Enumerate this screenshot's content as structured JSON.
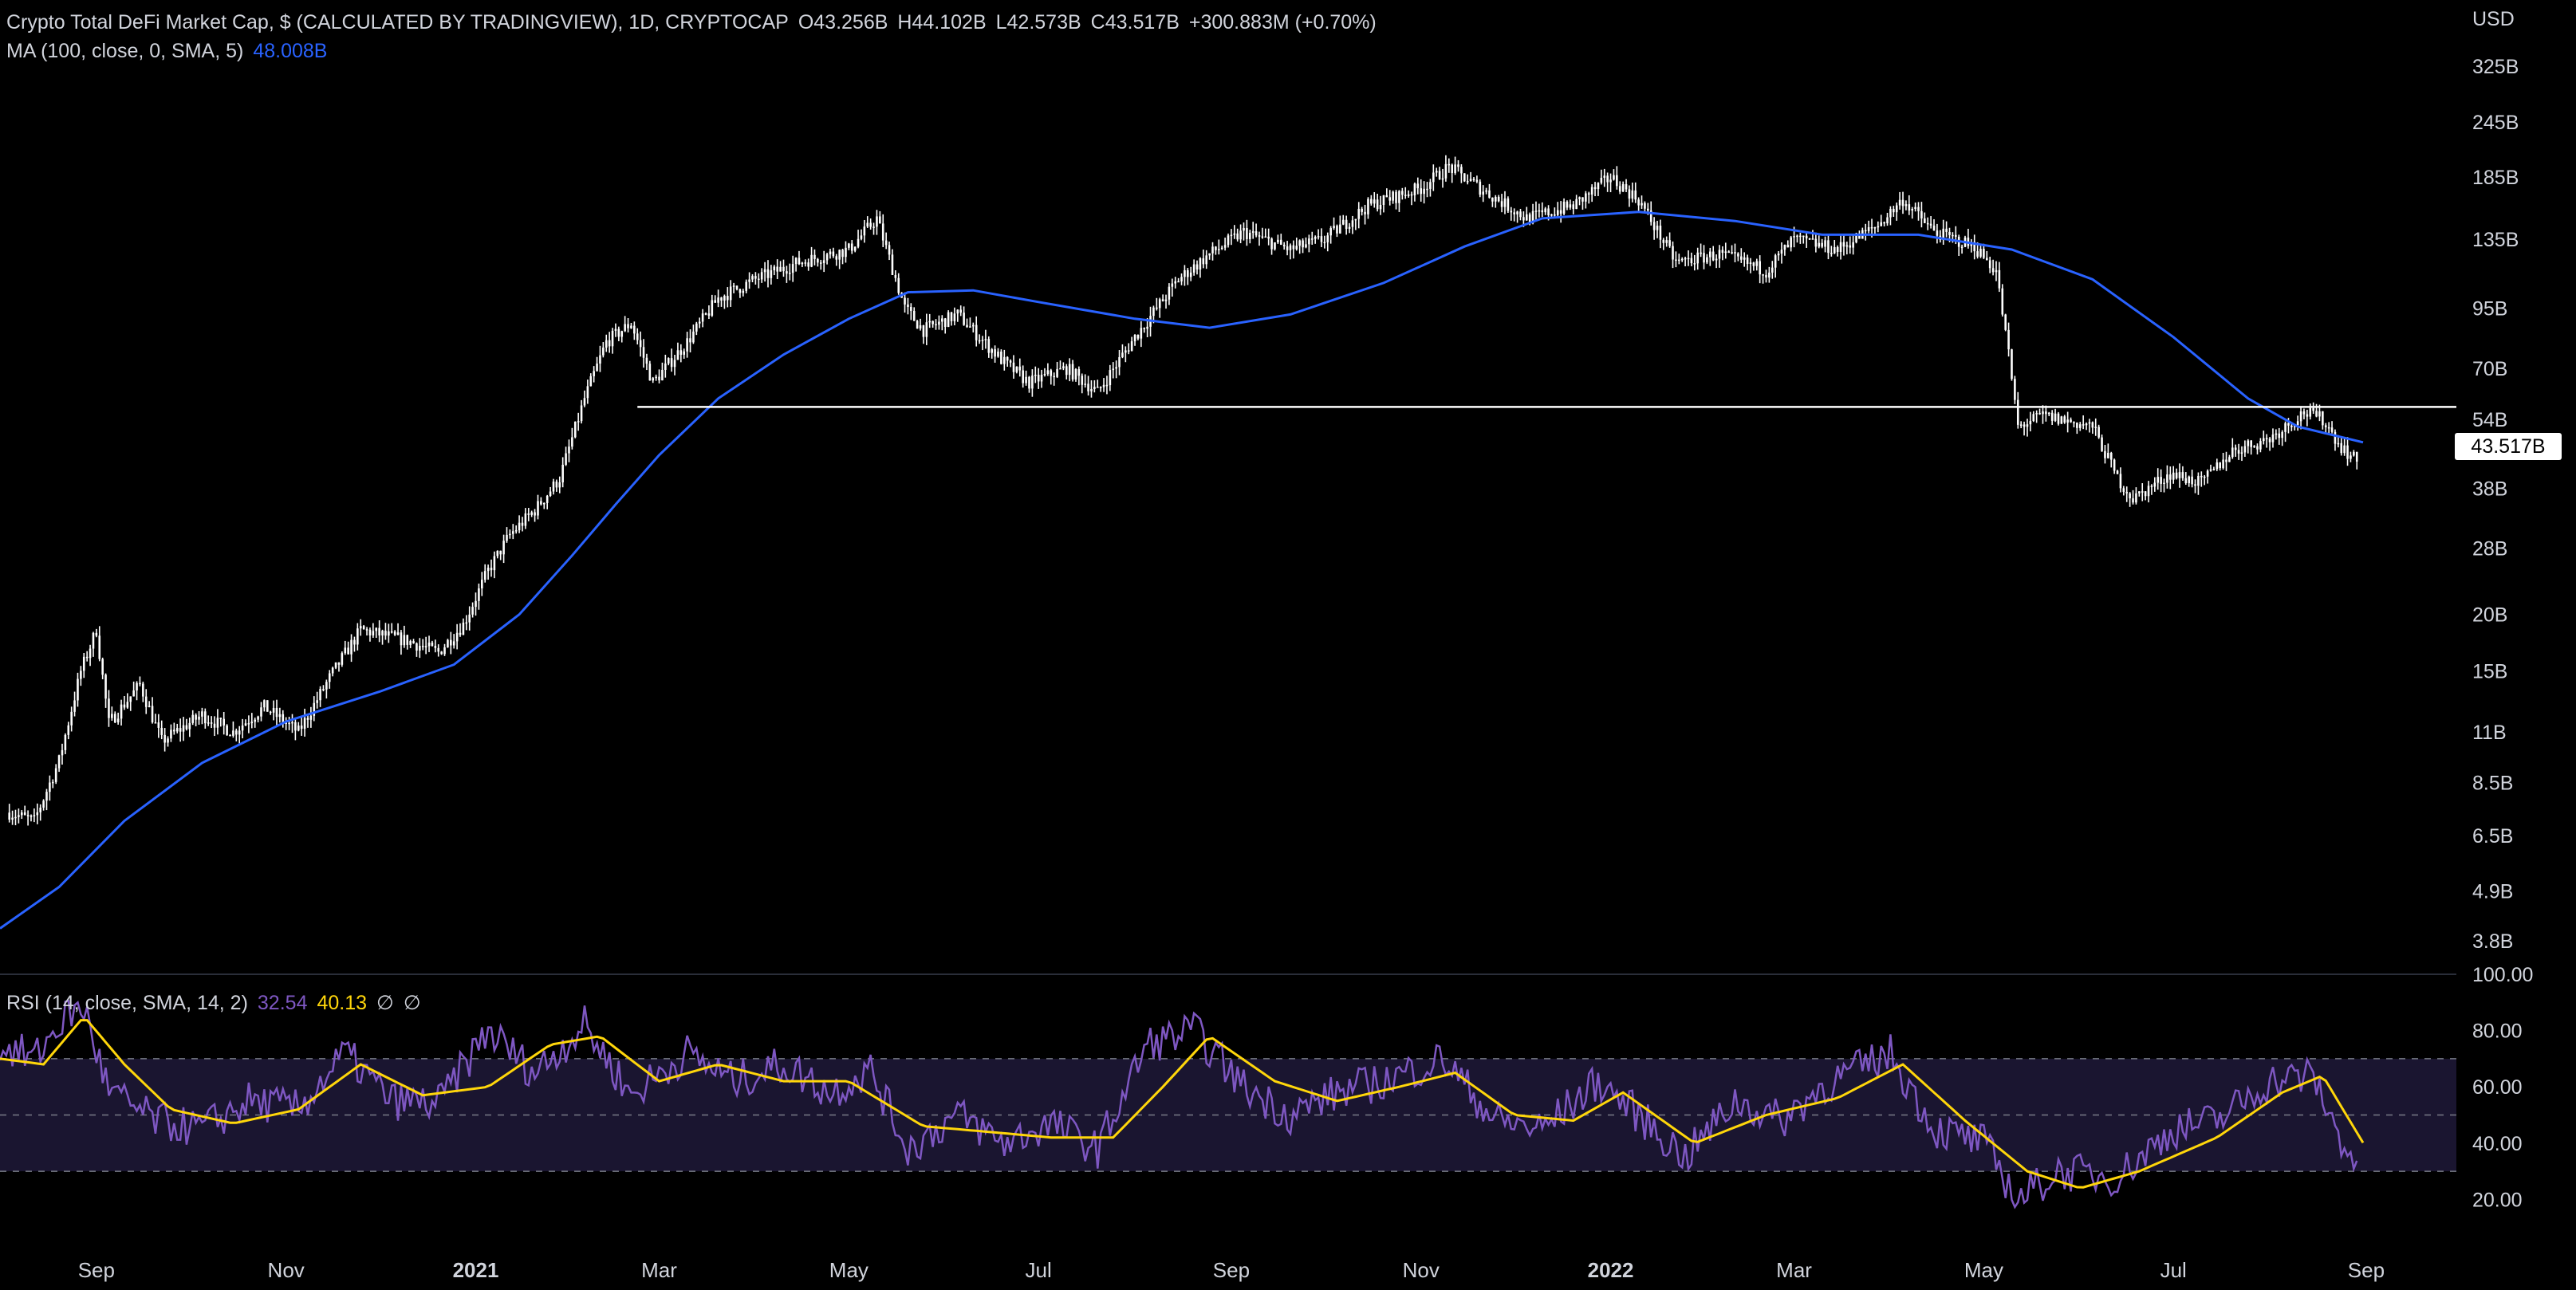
{
  "header": {
    "title": "Crypto Total DeFi Market Cap, $ (CALCULATED BY TRADINGVIEW), 1D, CRYPTOCAP",
    "open": "O43.256B",
    "high": "H44.102B",
    "low": "L42.573B",
    "close": "C43.517B",
    "change": "+300.883M (+0.70%)",
    "ma_label": "MA (100, close, 0, SMA, 5)",
    "ma_value": "48.008B",
    "rsi_label": "RSI (14, close, SMA, 14, 2)",
    "rsi_value": "32.54",
    "rsi_sma_value": "40.13",
    "rsi_extra1": "∅",
    "rsi_extra2": "∅"
  },
  "currency": "USD",
  "last_price_label": "43.517B",
  "colors": {
    "background": "#000000",
    "candles": "#ffffff",
    "ma": "#2962ff",
    "rsi": "#7e57c2",
    "rsi_sma": "#ffd60a",
    "band": "#1a1530",
    "support_line": "#ffffff",
    "axis_text": "#d1d4dc"
  },
  "chart_data": [
    {
      "type": "line",
      "subtype": "candlestick-ohlc",
      "title": "Crypto Total DeFi Market Cap",
      "y_scale": "log",
      "ylim": [
        3.3,
        420
      ],
      "y_unit": "B USD",
      "y_ticks": [
        {
          "v": 3.8,
          "label": "3.8B"
        },
        {
          "v": 4.9,
          "label": "4.9B"
        },
        {
          "v": 6.5,
          "label": "6.5B"
        },
        {
          "v": 8.5,
          "label": "8.5B"
        },
        {
          "v": 11,
          "label": "11B"
        },
        {
          "v": 15,
          "label": "15B"
        },
        {
          "v": 20,
          "label": "20B"
        },
        {
          "v": 28,
          "label": "28B"
        },
        {
          "v": 38,
          "label": "38B"
        },
        {
          "v": 54,
          "label": "54B"
        },
        {
          "v": 70,
          "label": "70B"
        },
        {
          "v": 95,
          "label": "95B"
        },
        {
          "v": 135,
          "label": "135B"
        },
        {
          "v": 185,
          "label": "185B"
        },
        {
          "v": 245,
          "label": "245B"
        },
        {
          "v": 325,
          "label": "325B"
        }
      ],
      "x_range": [
        "2020-08-01",
        "2022-09-30"
      ],
      "x_ticks": [
        {
          "d": "2020-09-01",
          "label": "Sep"
        },
        {
          "d": "2020-11-01",
          "label": "Nov"
        },
        {
          "d": "2021-01-01",
          "label": "2021"
        },
        {
          "d": "2021-03-01",
          "label": "Mar"
        },
        {
          "d": "2021-05-01",
          "label": "May"
        },
        {
          "d": "2021-07-01",
          "label": "Jul"
        },
        {
          "d": "2021-09-01",
          "label": "Sep"
        },
        {
          "d": "2021-11-01",
          "label": "Nov"
        },
        {
          "d": "2022-01-01",
          "label": "2022"
        },
        {
          "d": "2022-03-01",
          "label": "Mar"
        },
        {
          "d": "2022-05-01",
          "label": "May"
        },
        {
          "d": "2022-07-01",
          "label": "Jul"
        },
        {
          "d": "2022-09-01",
          "label": "Sep"
        }
      ],
      "price_path": [
        [
          "2020-08-04",
          7.3
        ],
        [
          "2020-08-12",
          7.0
        ],
        [
          "2020-08-20",
          9.5
        ],
        [
          "2020-08-27",
          15.0
        ],
        [
          "2020-09-01",
          18.5
        ],
        [
          "2020-09-05",
          11.5
        ],
        [
          "2020-09-15",
          14.0
        ],
        [
          "2020-09-22",
          10.5
        ],
        [
          "2020-10-05",
          12.0
        ],
        [
          "2020-10-15",
          11.0
        ],
        [
          "2020-10-25",
          12.5
        ],
        [
          "2020-11-05",
          11.0
        ],
        [
          "2020-11-15",
          14.5
        ],
        [
          "2020-11-25",
          18.5
        ],
        [
          "2020-12-10",
          17.5
        ],
        [
          "2020-12-20",
          16.5
        ],
        [
          "2020-12-28",
          19.0
        ],
        [
          "2021-01-05",
          25.0
        ],
        [
          "2021-01-12",
          30.0
        ],
        [
          "2021-01-20",
          34.0
        ],
        [
          "2021-01-28",
          40.0
        ],
        [
          "2021-02-05",
          60.0
        ],
        [
          "2021-02-12",
          80.0
        ],
        [
          "2021-02-20",
          88.0
        ],
        [
          "2021-02-27",
          65.0
        ],
        [
          "2021-03-10",
          80.0
        ],
        [
          "2021-03-20",
          100.0
        ],
        [
          "2021-04-01",
          110.0
        ],
        [
          "2021-04-15",
          120.0
        ],
        [
          "2021-05-01",
          128.0
        ],
        [
          "2021-05-10",
          150.0
        ],
        [
          "2021-05-19",
          95.0
        ],
        [
          "2021-05-25",
          85.0
        ],
        [
          "2021-06-05",
          92.0
        ],
        [
          "2021-06-20",
          72.0
        ],
        [
          "2021-06-28",
          65.0
        ],
        [
          "2021-07-10",
          70.0
        ],
        [
          "2021-07-20",
          62.0
        ],
        [
          "2021-08-01",
          82.0
        ],
        [
          "2021-08-15",
          110.0
        ],
        [
          "2021-08-25",
          125.0
        ],
        [
          "2021-09-05",
          140.0
        ],
        [
          "2021-09-20",
          128.0
        ],
        [
          "2021-10-01",
          135.0
        ],
        [
          "2021-10-15",
          160.0
        ],
        [
          "2021-11-01",
          175.0
        ],
        [
          "2021-11-10",
          195.0
        ],
        [
          "2021-11-20",
          175.0
        ],
        [
          "2021-12-05",
          150.0
        ],
        [
          "2021-12-20",
          160.0
        ],
        [
          "2022-01-01",
          185.0
        ],
        [
          "2022-01-10",
          165.0
        ],
        [
          "2022-01-22",
          120.0
        ],
        [
          "2022-02-05",
          125.0
        ],
        [
          "2022-02-20",
          115.0
        ],
        [
          "2022-03-01",
          135.0
        ],
        [
          "2022-03-15",
          128.0
        ],
        [
          "2022-03-28",
          145.0
        ],
        [
          "2022-04-05",
          165.0
        ],
        [
          "2022-04-15",
          140.0
        ],
        [
          "2022-04-28",
          130.0
        ],
        [
          "2022-05-05",
          115.0
        ],
        [
          "2022-05-09",
          75.0
        ],
        [
          "2022-05-12",
          52.0
        ],
        [
          "2022-05-20",
          55.0
        ],
        [
          "2022-06-05",
          52.0
        ],
        [
          "2022-06-13",
          40.0
        ],
        [
          "2022-06-18",
          36.0
        ],
        [
          "2022-06-30",
          41.0
        ],
        [
          "2022-07-10",
          39.0
        ],
        [
          "2022-07-20",
          46.0
        ],
        [
          "2022-08-01",
          49.0
        ],
        [
          "2022-08-12",
          56.0
        ],
        [
          "2022-08-18",
          54.0
        ],
        [
          "2022-08-24",
          47.0
        ],
        [
          "2022-08-29",
          43.517
        ]
      ],
      "ma_path": [
        [
          "2020-08-01",
          4.05
        ],
        [
          "2020-08-20",
          5.0
        ],
        [
          "2020-09-10",
          7.0
        ],
        [
          "2020-10-05",
          9.4
        ],
        [
          "2020-11-01",
          11.6
        ],
        [
          "2020-12-01",
          13.5
        ],
        [
          "2020-12-25",
          15.5
        ],
        [
          "2021-01-15",
          20.0
        ],
        [
          "2021-02-01",
          27.0
        ],
        [
          "2021-02-15",
          35.0
        ],
        [
          "2021-03-01",
          45.0
        ],
        [
          "2021-03-20",
          60.0
        ],
        [
          "2021-04-10",
          75.0
        ],
        [
          "2021-05-01",
          90.0
        ],
        [
          "2021-05-20",
          103.0
        ],
        [
          "2021-06-10",
          104.0
        ],
        [
          "2021-07-01",
          98.0
        ],
        [
          "2021-08-01",
          90.0
        ],
        [
          "2021-08-25",
          86.0
        ],
        [
          "2021-09-20",
          92.0
        ],
        [
          "2021-10-20",
          108.0
        ],
        [
          "2021-11-15",
          130.0
        ],
        [
          "2021-12-10",
          150.0
        ],
        [
          "2022-01-10",
          155.0
        ],
        [
          "2022-02-10",
          148.0
        ],
        [
          "2022-03-10",
          138.0
        ],
        [
          "2022-04-10",
          138.0
        ],
        [
          "2022-05-10",
          128.0
        ],
        [
          "2022-06-05",
          110.0
        ],
        [
          "2022-07-01",
          82.0
        ],
        [
          "2022-07-25",
          60.0
        ],
        [
          "2022-08-10",
          52.0
        ],
        [
          "2022-08-31",
          48.008
        ]
      ],
      "support_line": {
        "value": 57.5,
        "from": "2021-02-22",
        "to": "2022-09-30"
      },
      "last_value": 43.517,
      "grid": false,
      "legend": "top-left"
    },
    {
      "type": "line",
      "title": "RSI (14, close, SMA, 14, 2)",
      "ylim": [
        0,
        100
      ],
      "y_ticks": [
        {
          "v": 20,
          "label": "20.00"
        },
        {
          "v": 40,
          "label": "40.00"
        },
        {
          "v": 60,
          "label": "60.00"
        },
        {
          "v": 80,
          "label": "80.00"
        },
        {
          "v": 100,
          "label": "100.00"
        }
      ],
      "bands": {
        "upper": 70,
        "middle": 50,
        "lower": 30
      },
      "rsi_path": [
        [
          "2020-08-01",
          75
        ],
        [
          "2020-08-12",
          70
        ],
        [
          "2020-08-22",
          85
        ],
        [
          "2020-08-28",
          88
        ],
        [
          "2020-09-05",
          58
        ],
        [
          "2020-09-20",
          48
        ],
        [
          "2020-10-05",
          45
        ],
        [
          "2020-10-20",
          55
        ],
        [
          "2020-11-05",
          52
        ],
        [
          "2020-11-20",
          72
        ],
        [
          "2020-12-05",
          55
        ],
        [
          "2020-12-20",
          54
        ],
        [
          "2021-01-05",
          80
        ],
        [
          "2021-01-20",
          65
        ],
        [
          "2021-02-05",
          82
        ],
        [
          "2021-02-20",
          57
        ],
        [
          "2021-03-10",
          72
        ],
        [
          "2021-03-25",
          62
        ],
        [
          "2021-04-10",
          68
        ],
        [
          "2021-04-25",
          58
        ],
        [
          "2021-05-08",
          66
        ],
        [
          "2021-05-20",
          38
        ],
        [
          "2021-06-05",
          50
        ],
        [
          "2021-06-20",
          40
        ],
        [
          "2021-07-05",
          47
        ],
        [
          "2021-07-20",
          38
        ],
        [
          "2021-08-05",
          75
        ],
        [
          "2021-08-20",
          80
        ],
        [
          "2021-09-05",
          60
        ],
        [
          "2021-09-20",
          50
        ],
        [
          "2021-10-05",
          58
        ],
        [
          "2021-10-20",
          62
        ],
        [
          "2021-11-08",
          70
        ],
        [
          "2021-11-25",
          48
        ],
        [
          "2021-12-10",
          45
        ],
        [
          "2021-12-28",
          62
        ],
        [
          "2022-01-10",
          50
        ],
        [
          "2022-01-25",
          35
        ],
        [
          "2022-02-10",
          55
        ],
        [
          "2022-02-25",
          48
        ],
        [
          "2022-03-10",
          60
        ],
        [
          "2022-04-01",
          72
        ],
        [
          "2022-04-15",
          45
        ],
        [
          "2022-05-01",
          40
        ],
        [
          "2022-05-12",
          20
        ],
        [
          "2022-05-25",
          30
        ],
        [
          "2022-06-13",
          28
        ],
        [
          "2022-07-01",
          45
        ],
        [
          "2022-07-15",
          48
        ],
        [
          "2022-08-01",
          62
        ],
        [
          "2022-08-15",
          64
        ],
        [
          "2022-08-22",
          45
        ],
        [
          "2022-08-29",
          32.54
        ]
      ],
      "rsi_sma_path": [
        [
          "2020-08-01",
          70
        ],
        [
          "2020-08-15",
          68
        ],
        [
          "2020-08-28",
          85
        ],
        [
          "2020-09-10",
          68
        ],
        [
          "2020-09-25",
          52
        ],
        [
          "2020-10-15",
          47
        ],
        [
          "2020-11-05",
          52
        ],
        [
          "2020-11-25",
          68
        ],
        [
          "2020-12-15",
          57
        ],
        [
          "2021-01-05",
          60
        ],
        [
          "2021-01-25",
          75
        ],
        [
          "2021-02-10",
          78
        ],
        [
          "2021-03-01",
          62
        ],
        [
          "2021-03-20",
          68
        ],
        [
          "2021-04-10",
          62
        ],
        [
          "2021-05-01",
          62
        ],
        [
          "2021-05-25",
          46
        ],
        [
          "2021-06-15",
          44
        ],
        [
          "2021-07-05",
          42
        ],
        [
          "2021-07-25",
          42
        ],
        [
          "2021-08-10",
          60
        ],
        [
          "2021-08-25",
          78
        ],
        [
          "2021-09-15",
          62
        ],
        [
          "2021-10-05",
          55
        ],
        [
          "2021-10-25",
          60
        ],
        [
          "2021-11-12",
          65
        ],
        [
          "2021-12-01",
          50
        ],
        [
          "2021-12-20",
          48
        ],
        [
          "2022-01-05",
          58
        ],
        [
          "2022-01-28",
          40
        ],
        [
          "2022-02-20",
          50
        ],
        [
          "2022-03-15",
          56
        ],
        [
          "2022-04-05",
          68
        ],
        [
          "2022-04-25",
          48
        ],
        [
          "2022-05-15",
          30
        ],
        [
          "2022-06-01",
          24
        ],
        [
          "2022-06-20",
          30
        ],
        [
          "2022-07-15",
          42
        ],
        [
          "2022-08-05",
          58
        ],
        [
          "2022-08-18",
          64
        ],
        [
          "2022-08-31",
          40.13
        ]
      ],
      "last_values": {
        "rsi": 32.54,
        "rsi_sma": 40.13
      },
      "grid": false,
      "legend": "top-left"
    }
  ]
}
